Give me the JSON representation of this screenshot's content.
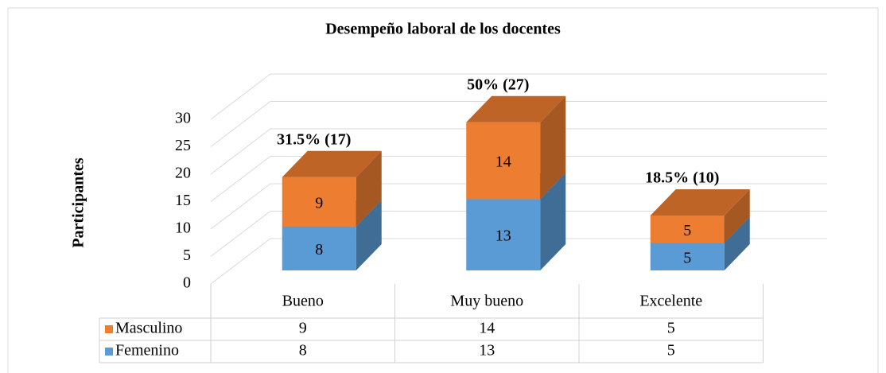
{
  "chart_data": {
    "type": "bar3d_stacked",
    "title": "Desempeño laboral de los docentes",
    "y_label": "Participantes",
    "categories": [
      "Bueno",
      "Muy bueno",
      "Excelente"
    ],
    "series": [
      {
        "name": "Femenino",
        "color": "#5b9bd5",
        "values": [
          8,
          13,
          5
        ]
      },
      {
        "name": "Masculino",
        "color": "#ed7d31",
        "values": [
          9,
          14,
          5
        ]
      }
    ],
    "total_labels": [
      "31.5% (17)",
      "50% (27)",
      "18.5% (10)"
    ],
    "ylim": [
      0,
      30
    ],
    "yticks": [
      0,
      5,
      10,
      15,
      20,
      25,
      30
    ],
    "grid": true
  }
}
